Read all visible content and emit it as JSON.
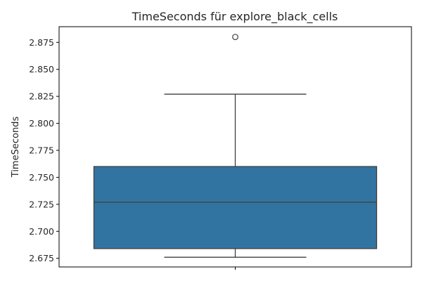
{
  "chart_data": {
    "type": "box",
    "title": "TimeSeconds für explore_black_cells",
    "xlabel": "",
    "ylabel": "TimeSeconds",
    "ylim": [
      2.667,
      2.8895
    ],
    "yticks": [
      2.675,
      2.7,
      2.725,
      2.75,
      2.775,
      2.8,
      2.825,
      2.85,
      2.875
    ],
    "ytick_labels": [
      "2.675",
      "2.700",
      "2.725",
      "2.750",
      "2.775",
      "2.800",
      "2.825",
      "2.850",
      "2.875"
    ],
    "grid": false,
    "box": {
      "whisker_low": 2.676,
      "q1": 2.684,
      "median": 2.727,
      "q3": 2.76,
      "whisker_high": 2.827,
      "outliers": [
        2.88
      ]
    },
    "colors": {
      "box_fill": "#3274a1",
      "line": "#3f3f3f"
    }
  }
}
